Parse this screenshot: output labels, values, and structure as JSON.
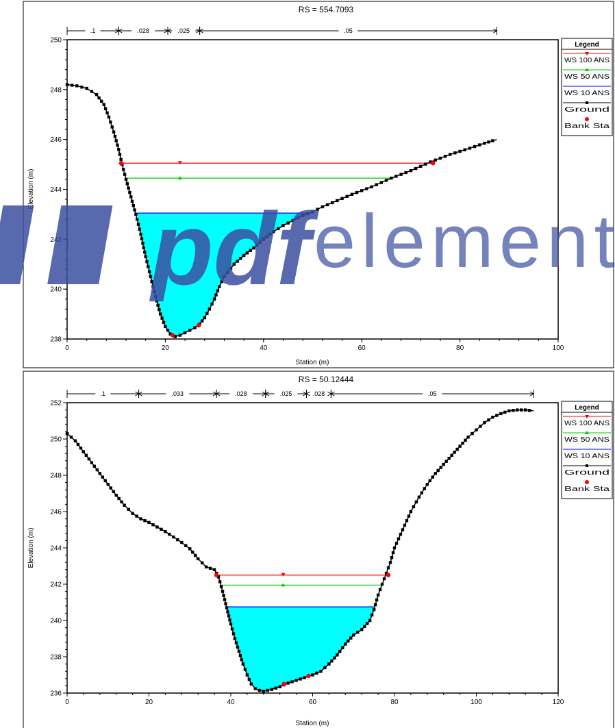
{
  "watermark": {
    "prefix": "pdf",
    "suffix": "element",
    "color": "#3c4fa0"
  },
  "legend": {
    "title": "Legend",
    "items": [
      "WS 100 ANS",
      "WS 50 ANS",
      "WS 10 ANS",
      "Ground",
      "Bank Sta"
    ]
  },
  "colors": {
    "ws100": "#ff0000",
    "ws50": "#00cc00",
    "ws10": "#0000ff",
    "ground": "#000000",
    "bank": "#ff0000",
    "water_fill": "#00ffff"
  },
  "chart_data": [
    {
      "type": "line",
      "title": "RS = 554.7093",
      "xlabel": "Station (m)",
      "ylabel": "Elevation (m)",
      "xlim": [
        0,
        100
      ],
      "ylim": [
        238,
        250
      ],
      "xticks": [
        0,
        20,
        40,
        60,
        80,
        100
      ],
      "yticks": [
        238,
        240,
        242,
        244,
        246,
        248,
        250
      ],
      "manning": [
        {
          "label": ".1",
          "from": 0,
          "to": 10.5
        },
        {
          "label": ".028",
          "from": 10.5,
          "to": 20.5
        },
        {
          "label": ".025",
          "from": 20.5,
          "to": 27
        },
        {
          "label": ".05",
          "from": 27,
          "to": 87.5
        }
      ],
      "ground": [
        [
          0,
          248.2
        ],
        [
          2,
          248.15
        ],
        [
          4,
          248.05
        ],
        [
          6,
          247.8
        ],
        [
          7.5,
          247.4
        ],
        [
          8.5,
          246.9
        ],
        [
          9.5,
          246.3
        ],
        [
          10.5,
          245.6
        ],
        [
          11.2,
          245.0
        ],
        [
          12,
          244.4
        ],
        [
          13,
          243.7
        ],
        [
          14,
          243.0
        ],
        [
          15,
          242.2
        ],
        [
          16,
          241.3
        ],
        [
          17,
          240.5
        ],
        [
          18,
          239.7
        ],
        [
          19,
          239.0
        ],
        [
          20,
          238.5
        ],
        [
          21,
          238.2
        ],
        [
          22,
          238.1
        ],
        [
          23,
          238.15
        ],
        [
          24,
          238.25
        ],
        [
          25,
          238.35
        ],
        [
          26,
          238.45
        ],
        [
          27,
          238.6
        ],
        [
          28,
          238.85
        ],
        [
          29,
          239.2
        ],
        [
          30,
          239.6
        ],
        [
          31,
          240.1
        ],
        [
          32,
          240.5
        ],
        [
          34,
          241.0
        ],
        [
          36,
          241.35
        ],
        [
          38,
          241.65
        ],
        [
          40,
          242.0
        ],
        [
          42,
          242.3
        ],
        [
          44,
          242.55
        ],
        [
          46,
          242.75
        ],
        [
          48,
          242.95
        ],
        [
          50,
          243.1
        ],
        [
          52,
          243.3
        ],
        [
          55,
          243.55
        ],
        [
          58,
          243.8
        ],
        [
          62,
          244.1
        ],
        [
          66,
          244.45
        ],
        [
          70,
          244.75
        ],
        [
          74,
          245.1
        ],
        [
          78,
          245.4
        ],
        [
          82,
          245.65
        ],
        [
          85,
          245.85
        ],
        [
          87.5,
          246.0
        ]
      ],
      "bank_stations": [
        [
          11,
          245.05
        ],
        [
          21.5,
          238.15
        ],
        [
          26.8,
          238.55
        ],
        [
          74.5,
          245.05
        ]
      ],
      "series": [
        {
          "name": "WS 100 ANS",
          "elevation": 245.05,
          "from": 11,
          "to": 74.5
        },
        {
          "name": "WS 50 ANS",
          "elevation": 244.45,
          "from": 12,
          "to": 66.5
        },
        {
          "name": "WS 10 ANS",
          "elevation": 243.05,
          "from": 14.2,
          "to": 50
        }
      ]
    },
    {
      "type": "line",
      "title": "RS = 50.12444",
      "xlabel": "Station (m)",
      "ylabel": "Elevation (m)",
      "xlim": [
        0,
        120
      ],
      "ylim": [
        236,
        252
      ],
      "xticks": [
        0,
        20,
        40,
        60,
        80,
        100,
        120
      ],
      "yticks": [
        236,
        238,
        240,
        242,
        244,
        246,
        248,
        250,
        252
      ],
      "manning": [
        {
          "label": ".1",
          "from": 0,
          "to": 17.5
        },
        {
          "label": ".033",
          "from": 17.5,
          "to": 36.5
        },
        {
          "label": ".028",
          "from": 36.5,
          "to": 48.5
        },
        {
          "label": ".025",
          "from": 48.5,
          "to": 58.5
        },
        {
          "label": ".028",
          "from": 58.5,
          "to": 64.5
        },
        {
          "label": ".05",
          "from": 64.5,
          "to": 114
        }
      ],
      "ground": [
        [
          0,
          250.3
        ],
        [
          2,
          249.9
        ],
        [
          4,
          249.3
        ],
        [
          6,
          248.7
        ],
        [
          8,
          248.1
        ],
        [
          10,
          247.5
        ],
        [
          12,
          246.9
        ],
        [
          14,
          246.35
        ],
        [
          16,
          245.9
        ],
        [
          18,
          245.6
        ],
        [
          20,
          245.4
        ],
        [
          22,
          245.15
        ],
        [
          24,
          244.9
        ],
        [
          26,
          244.6
        ],
        [
          28,
          244.3
        ],
        [
          30,
          243.95
        ],
        [
          32,
          243.4
        ],
        [
          34,
          242.95
        ],
        [
          36,
          242.8
        ],
        [
          37,
          242.4
        ],
        [
          38,
          241.6
        ],
        [
          39,
          240.7
        ],
        [
          40,
          239.8
        ],
        [
          41,
          239.0
        ],
        [
          42,
          238.3
        ],
        [
          43,
          237.6
        ],
        [
          44,
          237.0
        ],
        [
          45,
          236.5
        ],
        [
          46,
          236.25
        ],
        [
          47,
          236.15
        ],
        [
          48,
          236.1
        ],
        [
          49,
          236.15
        ],
        [
          50,
          236.2
        ],
        [
          52,
          236.35
        ],
        [
          54,
          236.55
        ],
        [
          56,
          236.7
        ],
        [
          58,
          236.85
        ],
        [
          60,
          237.0
        ],
        [
          62,
          237.2
        ],
        [
          64,
          237.6
        ],
        [
          66,
          238.1
        ],
        [
          68,
          238.7
        ],
        [
          70,
          239.2
        ],
        [
          72,
          239.5
        ],
        [
          74,
          240.0
        ],
        [
          75,
          240.6
        ],
        [
          76,
          241.4
        ],
        [
          77,
          242.0
        ],
        [
          78,
          242.6
        ],
        [
          79,
          243.2
        ],
        [
          80,
          244.0
        ],
        [
          82,
          245.0
        ],
        [
          84,
          246.0
        ],
        [
          86,
          246.8
        ],
        [
          88,
          247.5
        ],
        [
          90,
          248.1
        ],
        [
          92,
          248.6
        ],
        [
          94,
          249.1
        ],
        [
          96,
          249.6
        ],
        [
          98,
          250.1
        ],
        [
          100,
          250.5
        ],
        [
          102,
          250.9
        ],
        [
          104,
          251.2
        ],
        [
          106,
          251.4
        ],
        [
          108,
          251.55
        ],
        [
          110,
          251.6
        ],
        [
          112,
          251.6
        ],
        [
          114,
          251.55
        ]
      ],
      "bank_stations": [
        [
          36.5,
          242.5
        ],
        [
          53,
          236.5
        ],
        [
          59,
          236.95
        ],
        [
          78.5,
          242.5
        ]
      ],
      "series": [
        {
          "name": "WS 100 ANS",
          "elevation": 242.5,
          "from": 36.5,
          "to": 78.5
        },
        {
          "name": "WS 50 ANS",
          "elevation": 241.95,
          "from": 37.5,
          "to": 77.2
        },
        {
          "name": "WS 10 ANS",
          "elevation": 240.75,
          "from": 39,
          "to": 75
        }
      ]
    }
  ]
}
